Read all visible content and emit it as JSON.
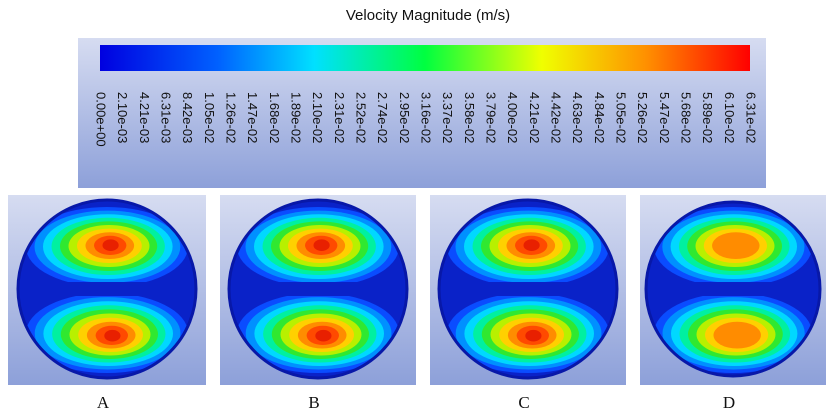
{
  "title": "Velocity Magnitude (m/s)",
  "colorbar": {
    "ticks": [
      "0.00e+00",
      "2.10e-03",
      "4.21e-03",
      "6.31e-03",
      "8.42e-03",
      "1.05e-02",
      "1.26e-02",
      "1.47e-02",
      "1.68e-02",
      "1.89e-02",
      "2.10e-02",
      "2.31e-02",
      "2.52e-02",
      "2.74e-02",
      "2.95e-02",
      "3.16e-02",
      "3.37e-02",
      "3.58e-02",
      "3.79e-02",
      "4.00e-02",
      "4.21e-02",
      "4.42e-02",
      "4.63e-02",
      "4.84e-02",
      "5.05e-02",
      "5.26e-02",
      "5.47e-02",
      "5.68e-02",
      "5.89e-02",
      "6.10e-02",
      "6.31e-02"
    ]
  },
  "panels": [
    {
      "label": "A"
    },
    {
      "label": "B"
    },
    {
      "label": "C"
    },
    {
      "label": "D"
    }
  ]
}
